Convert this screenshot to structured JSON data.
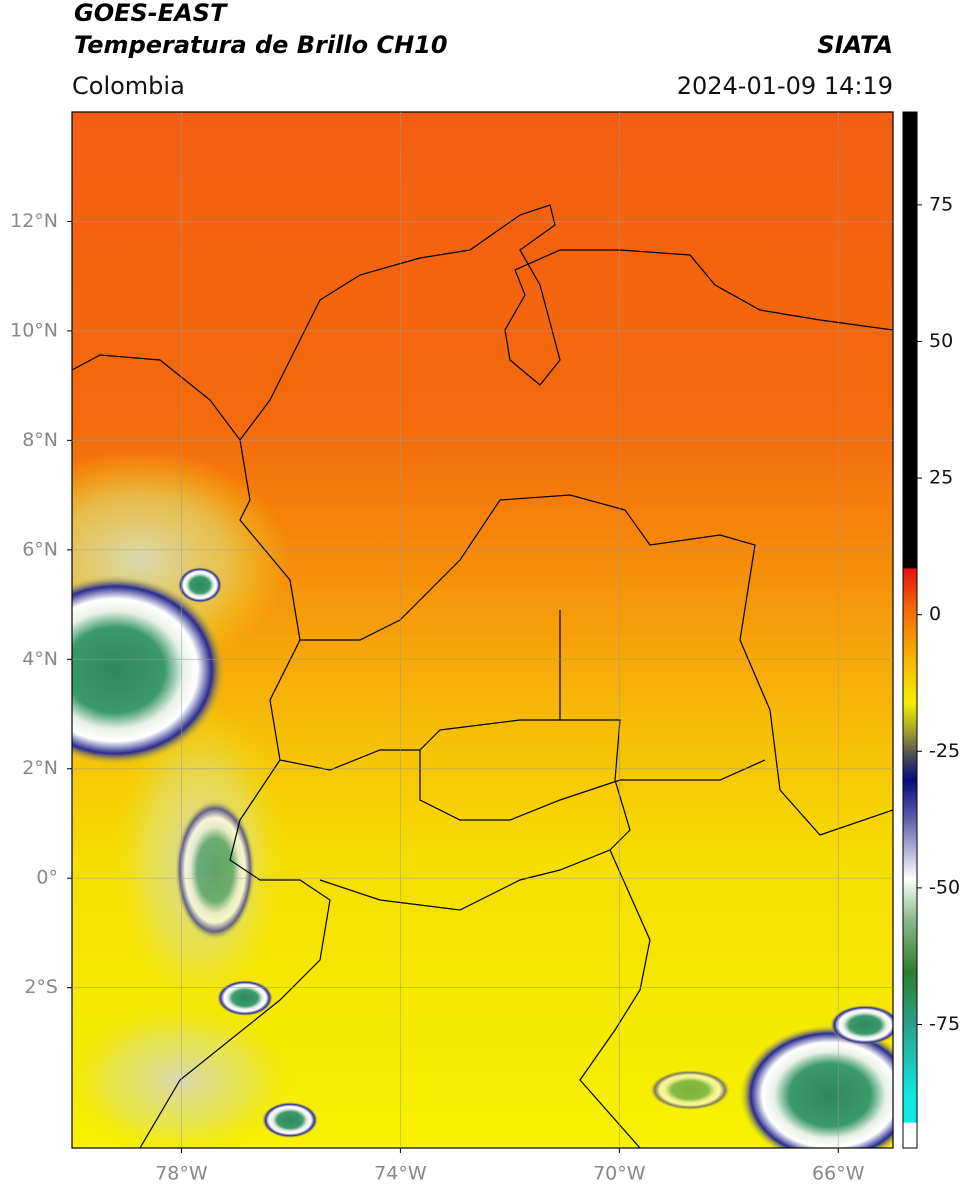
{
  "header": {
    "title": "GOES-EAST",
    "subtitle": "Temperatura de Brillo CH10",
    "region": "Colombia",
    "source": "SIATA",
    "timestamp": "2024-01-09 14:19"
  },
  "map": {
    "lon_range": [
      -80,
      -65
    ],
    "lat_range": [
      -4.93,
      14
    ],
    "lon_ticks": [
      {
        "value": -78,
        "label": "78°W"
      },
      {
        "value": -74,
        "label": "74°W"
      },
      {
        "value": -70,
        "label": "70°W"
      },
      {
        "value": -66,
        "label": "66°W"
      }
    ],
    "lat_ticks": [
      {
        "value": 12,
        "label": "12°N"
      },
      {
        "value": 10,
        "label": "10°N"
      },
      {
        "value": 8,
        "label": "8°N"
      },
      {
        "value": 6,
        "label": "6°N"
      },
      {
        "value": 4,
        "label": "4°N"
      },
      {
        "value": 2,
        "label": "2°N"
      },
      {
        "value": 0,
        "label": "0°"
      },
      {
        "value": -2,
        "label": "2°S"
      }
    ],
    "grid": true
  },
  "colorbar": {
    "lim": [
      -97.6,
      92
    ],
    "ticks": [
      75,
      50,
      25,
      0,
      -25,
      -50,
      -75
    ]
  }
}
